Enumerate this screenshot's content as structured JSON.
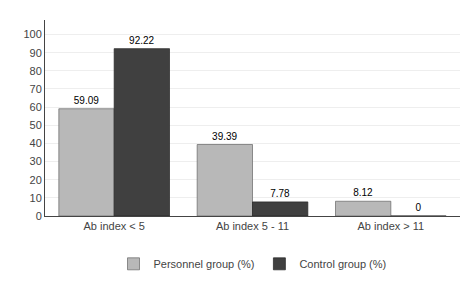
{
  "chart_data": {
    "type": "bar",
    "categories": [
      "Ab index < 5",
      "Ab index 5 - 11",
      "Ab index > 11"
    ],
    "series": [
      {
        "name": "Personnel group (%)",
        "color": "#b8b8b8",
        "values": [
          59.09,
          39.39,
          8.12
        ]
      },
      {
        "name": "Control group (%)",
        "color": "#404040",
        "values": [
          92.22,
          7.78,
          0
        ]
      }
    ],
    "ylim": [
      0,
      108
    ],
    "yticks": [
      0,
      10,
      20,
      30,
      40,
      50,
      60,
      70,
      80,
      90,
      100
    ],
    "grid": true,
    "legend": "bottom",
    "data_labels": true
  }
}
